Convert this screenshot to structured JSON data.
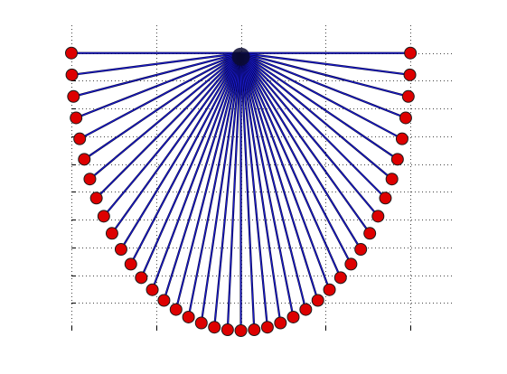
{
  "chart_data": {
    "type": "scatter",
    "title": "",
    "xlabel": "",
    "ylabel": "",
    "grid": true,
    "grid_style": "dotted",
    "xlim": [
      -2,
      2.5
    ],
    "ylim": [
      -1,
      0.1
    ],
    "x_ticks": [
      -2,
      -1,
      0,
      1,
      2
    ],
    "y_ticks": [
      0,
      -0.1,
      -0.2,
      -0.3,
      -0.4,
      -0.5,
      -0.6,
      -0.7,
      -0.8,
      -0.9
    ],
    "tick_labels_visible": false,
    "hub": {
      "x": 0,
      "y": 0
    },
    "node_count": 41,
    "node_radius": 2,
    "node_arc_start_deg": -180,
    "node_arc_end_deg": 0,
    "node_vertical_scale": 0.5,
    "colors": {
      "node_fill": "#dd0000",
      "node_stroke": "#1a1a1a",
      "spoke_blue": "#1a1acc",
      "spoke_dark": "#000033",
      "grid": "#444444",
      "axes_box": "#000000"
    }
  }
}
